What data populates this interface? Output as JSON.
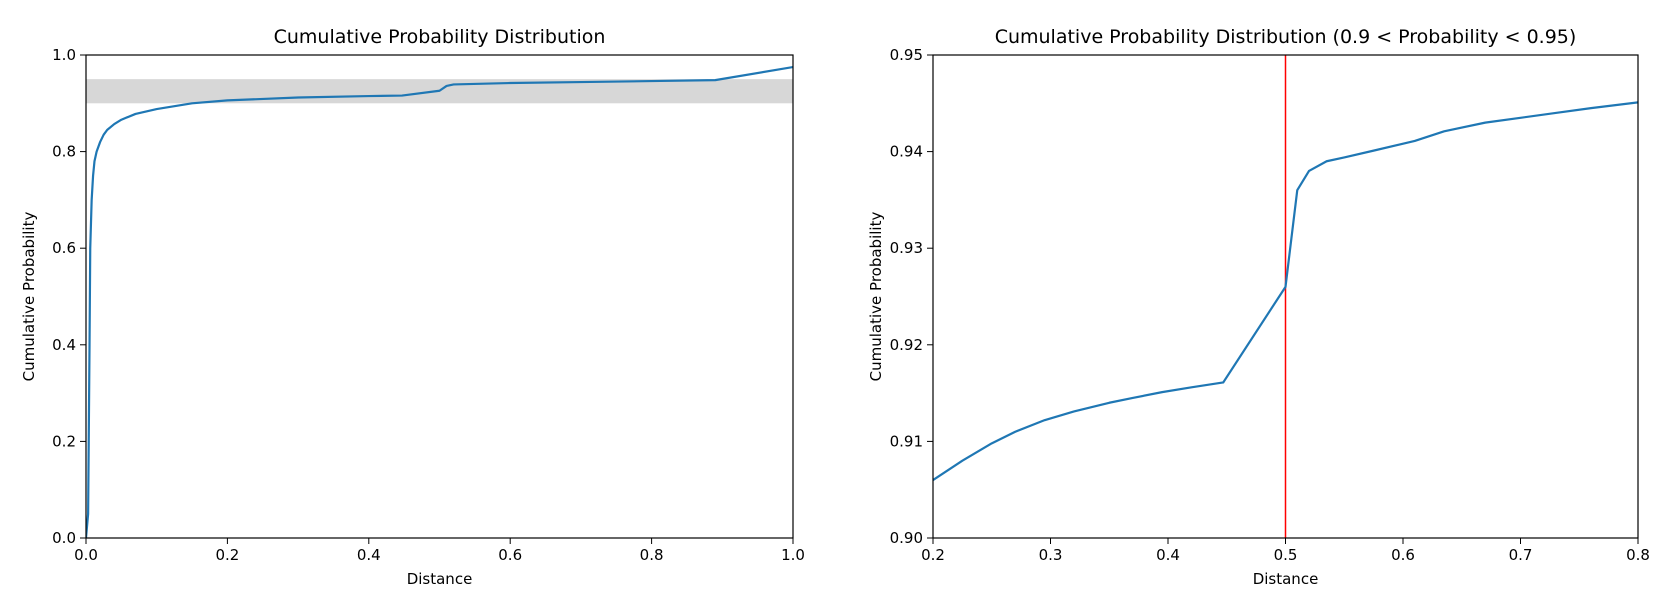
{
  "chart_data": [
    {
      "type": "line",
      "title": "Cumulative Probability Distribution",
      "xlabel": "Distance",
      "ylabel": "Cumulative Probability",
      "xlim": [
        0.0,
        1.0
      ],
      "ylim": [
        0.0,
        1.0
      ],
      "xticks": [
        0.0,
        0.2,
        0.4,
        0.6,
        0.8,
        1.0
      ],
      "xtick_labels": [
        "0.0",
        "0.2",
        "0.4",
        "0.6",
        "0.8",
        "1.0"
      ],
      "yticks": [
        0.0,
        0.2,
        0.4,
        0.6,
        0.8,
        1.0
      ],
      "ytick_labels": [
        "0.0",
        "0.2",
        "0.4",
        "0.6",
        "0.8",
        "1.0"
      ],
      "grid": false,
      "shaded_band": {
        "y_from": 0.9,
        "y_to": 0.95,
        "color": "#d3d3d3"
      },
      "series": [
        {
          "color": "#1f77b4",
          "x": [
            0.0,
            0.003,
            0.005,
            0.006,
            0.008,
            0.01,
            0.012,
            0.015,
            0.02,
            0.025,
            0.03,
            0.04,
            0.05,
            0.07,
            0.1,
            0.15,
            0.2,
            0.3,
            0.4,
            0.447,
            0.5,
            0.51,
            0.52,
            0.6,
            0.7,
            0.8,
            0.89,
            1.0
          ],
          "y": [
            0.0,
            0.05,
            0.4,
            0.6,
            0.7,
            0.75,
            0.78,
            0.8,
            0.82,
            0.835,
            0.845,
            0.857,
            0.866,
            0.878,
            0.888,
            0.9,
            0.906,
            0.912,
            0.915,
            0.916,
            0.926,
            0.936,
            0.939,
            0.942,
            0.944,
            0.946,
            0.948,
            0.975
          ]
        }
      ]
    },
    {
      "type": "line",
      "title": "Cumulative Probability Distribution (0.9 < Probability < 0.95)",
      "xlabel": "Distance",
      "ylabel": "Cumulative Probability",
      "xlim": [
        0.2,
        0.8
      ],
      "ylim": [
        0.9,
        0.95
      ],
      "xticks": [
        0.2,
        0.3,
        0.4,
        0.5,
        0.6,
        0.7,
        0.8
      ],
      "xtick_labels": [
        "0.2",
        "0.3",
        "0.4",
        "0.5",
        "0.6",
        "0.7",
        "0.8"
      ],
      "yticks": [
        0.9,
        0.91,
        0.92,
        0.93,
        0.94,
        0.95
      ],
      "ytick_labels": [
        "0.90",
        "0.91",
        "0.92",
        "0.93",
        "0.94",
        "0.95"
      ],
      "grid": false,
      "vertical_line": {
        "x": 0.5,
        "color": "#ff0000"
      },
      "series": [
        {
          "color": "#1f77b4",
          "x": [
            0.2,
            0.225,
            0.25,
            0.27,
            0.295,
            0.32,
            0.35,
            0.37,
            0.395,
            0.42,
            0.447,
            0.5,
            0.505,
            0.51,
            0.52,
            0.535,
            0.55,
            0.575,
            0.61,
            0.635,
            0.67,
            0.7,
            0.73,
            0.76,
            0.8
          ],
          "y": [
            0.906,
            0.908,
            0.9098,
            0.911,
            0.9122,
            0.9131,
            0.914,
            0.9145,
            0.9151,
            0.9156,
            0.9161,
            0.926,
            0.931,
            0.936,
            0.938,
            0.939,
            0.9394,
            0.9401,
            0.9411,
            0.9421,
            0.943,
            0.9435,
            0.944,
            0.9445,
            0.9451
          ]
        }
      ]
    }
  ]
}
